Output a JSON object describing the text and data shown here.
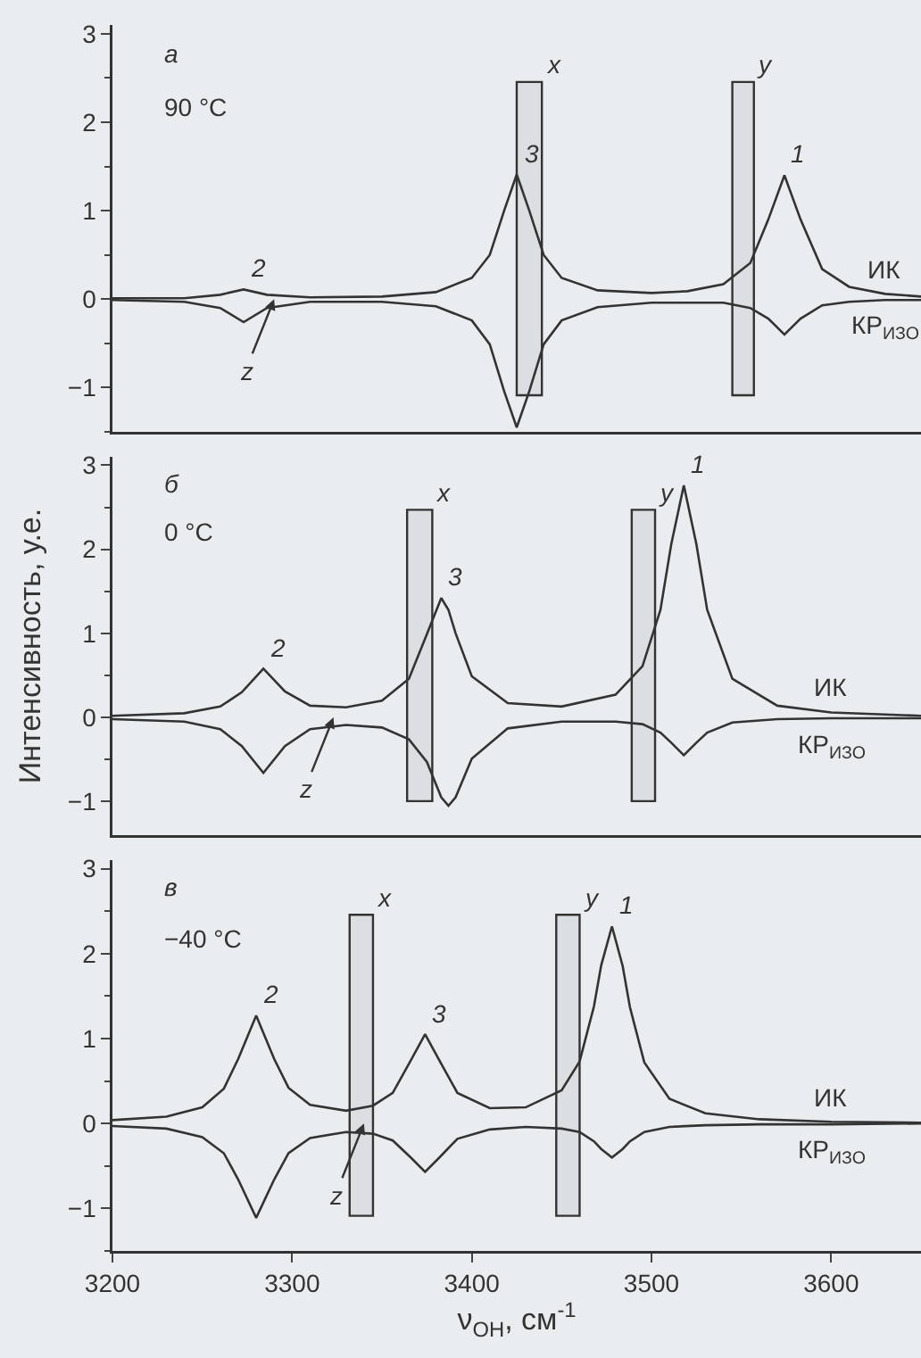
{
  "chart_data": [
    {
      "type": "line",
      "xlim": [
        3200,
        3650
      ],
      "ylim": [
        -1.5,
        3.1
      ],
      "yticks": [
        -1,
        0,
        1,
        2,
        3
      ],
      "tick_labels": "y",
      "grid": false,
      "legend": false,
      "x": [
        3200,
        3240,
        3260,
        3273,
        3286,
        3310,
        3350,
        3380,
        3400,
        3410,
        3418,
        3425,
        3432,
        3440,
        3450,
        3470,
        3500,
        3520,
        3540,
        3555,
        3565,
        3574,
        3583,
        3595,
        3610,
        3630,
        3650
      ],
      "series": [
        {
          "name": "ИК",
          "color": "#333333",
          "values": [
            0.01,
            0.01,
            0.05,
            0.11,
            0.05,
            0.02,
            0.03,
            0.08,
            0.24,
            0.5,
            1.0,
            1.41,
            1.0,
            0.5,
            0.24,
            0.1,
            0.07,
            0.09,
            0.17,
            0.41,
            0.9,
            1.4,
            0.9,
            0.34,
            0.14,
            0.06,
            0.03
          ]
        },
        {
          "name": "КР$_{ИЗО}$",
          "color": "#333333",
          "values": [
            -0.01,
            -0.03,
            -0.1,
            -0.26,
            -0.1,
            -0.03,
            -0.03,
            -0.08,
            -0.24,
            -0.51,
            -1.04,
            -1.45,
            -1.04,
            -0.51,
            -0.24,
            -0.09,
            -0.04,
            -0.04,
            -0.04,
            -0.1,
            -0.22,
            -0.4,
            -0.22,
            -0.07,
            -0.03,
            -0.01,
            -0.01
          ]
        }
      ],
      "bands": [
        {
          "axis": "x",
          "from": 3425,
          "to": 3439,
          "label": "x"
        },
        {
          "axis": "x",
          "from": 3545,
          "to": 3557,
          "label": "y"
        }
      ],
      "annotations": [
        "а",
        "90 °C",
        {
          "text": "2",
          "x": 3273,
          "y": 0.11
        },
        {
          "text": "3",
          "x": 3425,
          "y": 1.41
        },
        {
          "text": "1",
          "x": 3574,
          "y": 1.4
        },
        {
          "text": "z",
          "x": 3290,
          "y": 0
        }
      ]
    },
    {
      "type": "line",
      "xlim": [
        3200,
        3650
      ],
      "ylim": [
        -1.4,
        3.1
      ],
      "yticks": [
        -1,
        0,
        1,
        2,
        3
      ],
      "tick_labels": "y",
      "grid": false,
      "legend": false,
      "ylabel": "Интенсивность, у.е.",
      "x": [
        3200,
        3240,
        3260,
        3272,
        3284,
        3296,
        3310,
        3330,
        3350,
        3365,
        3375,
        3383,
        3387,
        3391,
        3400,
        3420,
        3450,
        3480,
        3495,
        3505,
        3511,
        3518,
        3525,
        3531,
        3545,
        3570,
        3600,
        3650
      ],
      "series": [
        {
          "name": "ИК",
          "color": "#333333",
          "values": [
            0.02,
            0.05,
            0.13,
            0.3,
            0.58,
            0.31,
            0.14,
            0.12,
            0.2,
            0.46,
            0.99,
            1.42,
            1.28,
            1.0,
            0.49,
            0.17,
            0.13,
            0.27,
            0.61,
            1.28,
            2.06,
            2.76,
            2.06,
            1.28,
            0.46,
            0.14,
            0.06,
            0.02
          ]
        },
        {
          "name": "КР$_{ИЗО}$",
          "color": "#333333",
          "values": [
            -0.02,
            -0.05,
            -0.14,
            -0.34,
            -0.66,
            -0.34,
            -0.14,
            -0.09,
            -0.12,
            -0.26,
            -0.53,
            -0.95,
            -1.05,
            -0.95,
            -0.49,
            -0.13,
            -0.05,
            -0.05,
            -0.08,
            -0.18,
            -0.3,
            -0.45,
            -0.3,
            -0.18,
            -0.06,
            -0.02,
            -0.01,
            -0.01
          ]
        }
      ],
      "bands": [
        {
          "axis": "x",
          "from": 3364,
          "to": 3378,
          "label": "x"
        },
        {
          "axis": "x",
          "from": 3489,
          "to": 3502,
          "label": "y"
        }
      ],
      "annotations": [
        "б",
        "0 °C",
        {
          "text": "2",
          "x": 3284,
          "y": 0.58
        },
        {
          "text": "3",
          "x": 3383,
          "y": 1.42
        },
        {
          "text": "1",
          "x": 3518,
          "y": 2.76
        },
        {
          "text": "z",
          "x": 3323,
          "y": 0
        }
      ]
    },
    {
      "type": "line",
      "xlim": [
        3200,
        3650
      ],
      "ylim": [
        -1.5,
        3.1
      ],
      "xticks": [
        3200,
        3300,
        3400,
        3500,
        3600
      ],
      "yticks": [
        -1,
        0,
        1,
        2,
        3
      ],
      "grid": false,
      "legend": false,
      "xlabel": "ν$_{OH}$, см$^{-1}$",
      "x": [
        3200,
        3230,
        3250,
        3262,
        3270,
        3280,
        3290,
        3298,
        3310,
        3330,
        3345,
        3356,
        3366,
        3374,
        3382,
        3392,
        3410,
        3430,
        3450,
        3460,
        3468,
        3472,
        3478,
        3484,
        3488,
        3496,
        3510,
        3530,
        3560,
        3600,
        3650
      ],
      "series": [
        {
          "name": "ИК",
          "color": "#333333",
          "values": [
            0.04,
            0.08,
            0.19,
            0.41,
            0.76,
            1.27,
            0.76,
            0.42,
            0.22,
            0.15,
            0.21,
            0.36,
            0.74,
            1.05,
            0.74,
            0.36,
            0.18,
            0.19,
            0.39,
            0.73,
            1.38,
            1.86,
            2.32,
            1.85,
            1.37,
            0.72,
            0.29,
            0.12,
            0.05,
            0.02,
            0.01
          ]
        },
        {
          "name": "КР$_{ИЗО}$",
          "color": "#333333",
          "values": [
            -0.03,
            -0.06,
            -0.16,
            -0.35,
            -0.66,
            -1.11,
            -0.66,
            -0.35,
            -0.17,
            -0.1,
            -0.12,
            -0.2,
            -0.4,
            -0.57,
            -0.4,
            -0.18,
            -0.07,
            -0.04,
            -0.06,
            -0.1,
            -0.21,
            -0.3,
            -0.4,
            -0.3,
            -0.21,
            -0.1,
            -0.04,
            -0.02,
            -0.01,
            -0.01,
            0
          ]
        }
      ],
      "bands": [
        {
          "axis": "x",
          "from": 3332,
          "to": 3345,
          "label": "x"
        },
        {
          "axis": "x",
          "from": 3447,
          "to": 3460,
          "label": "y"
        }
      ],
      "annotations": [
        "в",
        "−40 °C",
        {
          "text": "2",
          "x": 3280,
          "y": 1.27
        },
        {
          "text": "3",
          "x": 3374,
          "y": 1.05
        },
        {
          "text": "1",
          "x": 3478,
          "y": 2.32
        },
        {
          "text": "z",
          "x": 3340,
          "y": 0
        }
      ]
    }
  ]
}
